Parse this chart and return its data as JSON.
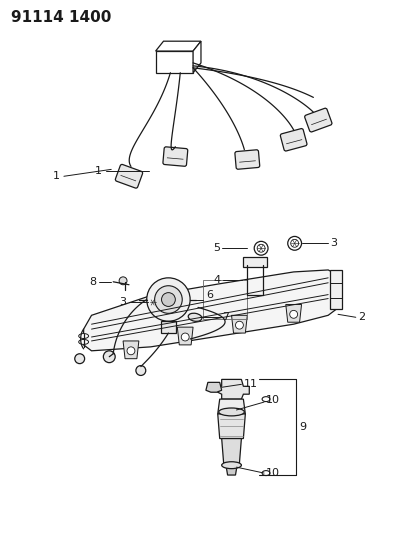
{
  "title": "91114 1400",
  "background_color": "#ffffff",
  "line_color": "#000000",
  "fig_width": 3.98,
  "fig_height": 5.33,
  "dpi": 100
}
